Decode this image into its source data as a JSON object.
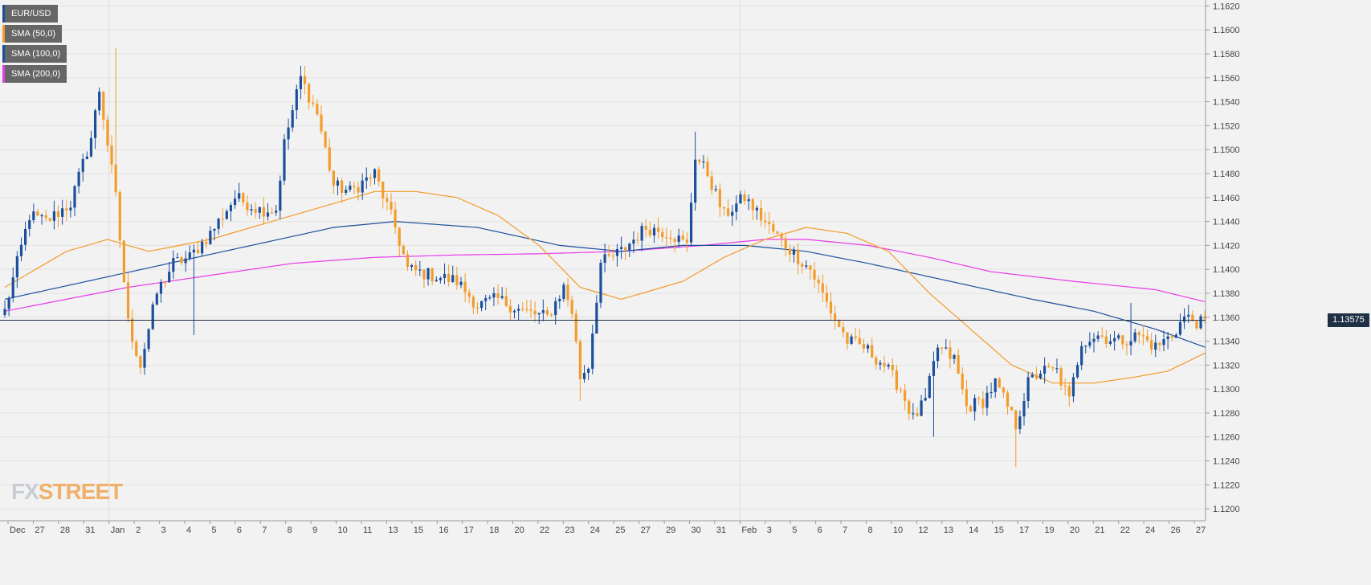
{
  "legend": [
    {
      "label": "EUR/USD",
      "color": "#1b4f9c"
    },
    {
      "label": "SMA (50,0)",
      "color": "#f39c2b"
    },
    {
      "label": "SMA (100,0)",
      "color": "#1b4f9c"
    },
    {
      "label": "SMA (200,0)",
      "color": "#e83be8"
    }
  ],
  "watermark": {
    "fx": "FX",
    "street": "STREET"
  },
  "current_price_label": "1.13575",
  "chart_data": {
    "type": "candlestick",
    "title": "",
    "xlabel": "",
    "ylabel": "",
    "ylim": [
      1.119,
      1.1625
    ],
    "y_ticks": [
      "1.1200",
      "1.1220",
      "1.1240",
      "1.1260",
      "1.1280",
      "1.1300",
      "1.1320",
      "1.1340",
      "1.1360",
      "1.1380",
      "1.1400",
      "1.1420",
      "1.1440",
      "1.1460",
      "1.1480",
      "1.1500",
      "1.1520",
      "1.1540",
      "1.1560",
      "1.1580",
      "1.1600",
      "1.1620"
    ],
    "x_ticks": [
      "Dec",
      "27",
      "28",
      "31",
      "Jan",
      "2",
      "3",
      "4",
      "5",
      "6",
      "7",
      "8",
      "9",
      "10",
      "11",
      "13",
      "15",
      "16",
      "17",
      "18",
      "20",
      "22",
      "23",
      "24",
      "25",
      "27",
      "29",
      "30",
      "31",
      "Feb",
      "3",
      "5",
      "6",
      "7",
      "8",
      "10",
      "12",
      "13",
      "14",
      "15",
      "17",
      "19",
      "20",
      "21",
      "22",
      "24",
      "26",
      "27"
    ],
    "current_price": 1.13575,
    "colors": {
      "up": "#1b4f9c",
      "down": "#f39c2b",
      "sma50": "#f39c2b",
      "sma100": "#1b4f9c",
      "sma200": "#e83be8",
      "grid": "#e2e2e2",
      "price_line": "#1f2f45"
    },
    "anchors": [
      [
        0,
        1.1365
      ],
      [
        6,
        1.1445
      ],
      [
        10,
        1.144
      ],
      [
        16,
        1.1455
      ],
      [
        21,
        1.151
      ],
      [
        23,
        1.155
      ],
      [
        27,
        1.146
      ],
      [
        30,
        1.1355
      ],
      [
        33,
        1.132
      ],
      [
        37,
        1.138
      ],
      [
        41,
        1.1405
      ],
      [
        45,
        1.141
      ],
      [
        50,
        1.143
      ],
      [
        56,
        1.146
      ],
      [
        62,
        1.145
      ],
      [
        66,
        1.145
      ],
      [
        68,
        1.1505
      ],
      [
        72,
        1.156
      ],
      [
        76,
        1.153
      ],
      [
        80,
        1.147
      ],
      [
        84,
        1.1465
      ],
      [
        90,
        1.148
      ],
      [
        95,
        1.1435
      ],
      [
        98,
        1.14
      ],
      [
        104,
        1.1395
      ],
      [
        110,
        1.139
      ],
      [
        115,
        1.137
      ],
      [
        120,
        1.1375
      ],
      [
        126,
        1.1365
      ],
      [
        132,
        1.136
      ],
      [
        136,
        1.1385
      ],
      [
        138,
        1.1365
      ],
      [
        140,
        1.131
      ],
      [
        142,
        1.132
      ],
      [
        145,
        1.1405
      ],
      [
        150,
        1.1415
      ],
      [
        156,
        1.1435
      ],
      [
        162,
        1.143
      ],
      [
        166,
        1.142
      ],
      [
        168,
        1.1495
      ],
      [
        171,
        1.148
      ],
      [
        175,
        1.1445
      ],
      [
        180,
        1.146
      ],
      [
        186,
        1.1435
      ],
      [
        190,
        1.142
      ],
      [
        196,
        1.14
      ],
      [
        201,
        1.1365
      ],
      [
        205,
        1.134
      ],
      [
        209,
        1.1335
      ],
      [
        214,
        1.132
      ],
      [
        218,
        1.13
      ],
      [
        221,
        1.1275
      ],
      [
        224,
        1.129
      ],
      [
        227,
        1.1335
      ],
      [
        231,
        1.1325
      ],
      [
        234,
        1.1285
      ],
      [
        238,
        1.129
      ],
      [
        241,
        1.1305
      ],
      [
        244,
        1.1285
      ],
      [
        246,
        1.127
      ],
      [
        249,
        1.1305
      ],
      [
        252,
        1.1315
      ],
      [
        256,
        1.1315
      ],
      [
        259,
        1.129
      ],
      [
        262,
        1.134
      ],
      [
        266,
        1.1345
      ],
      [
        271,
        1.134
      ],
      [
        276,
        1.1345
      ],
      [
        280,
        1.1335
      ],
      [
        284,
        1.1345
      ],
      [
        287,
        1.136
      ],
      [
        291,
        1.1355
      ]
    ],
    "spikes": [
      {
        "i": 27,
        "high": 1.1585
      },
      {
        "i": 72,
        "high": 1.157
      },
      {
        "i": 168,
        "high": 1.1515
      },
      {
        "i": 140,
        "low": 1.129
      },
      {
        "i": 246,
        "low": 1.1235
      },
      {
        "i": 226,
        "low": 1.126
      },
      {
        "i": 46,
        "low": 1.1345
      },
      {
        "i": 179,
        "low": 1.146
      },
      {
        "i": 274,
        "high": 1.1372
      }
    ],
    "sma50": [
      [
        0,
        1.1385
      ],
      [
        15,
        1.1415
      ],
      [
        25,
        1.1425
      ],
      [
        35,
        1.1415
      ],
      [
        50,
        1.1425
      ],
      [
        65,
        1.144
      ],
      [
        80,
        1.1455
      ],
      [
        90,
        1.1465
      ],
      [
        100,
        1.1465
      ],
      [
        110,
        1.146
      ],
      [
        120,
        1.1445
      ],
      [
        130,
        1.142
      ],
      [
        140,
        1.1385
      ],
      [
        150,
        1.1375
      ],
      [
        165,
        1.139
      ],
      [
        175,
        1.141
      ],
      [
        185,
        1.1425
      ],
      [
        195,
        1.1435
      ],
      [
        205,
        1.143
      ],
      [
        215,
        1.1415
      ],
      [
        225,
        1.138
      ],
      [
        235,
        1.135
      ],
      [
        245,
        1.132
      ],
      [
        255,
        1.1305
      ],
      [
        265,
        1.1305
      ],
      [
        275,
        1.131
      ],
      [
        283,
        1.1315
      ],
      [
        292,
        1.133
      ]
    ],
    "sma100": [
      [
        0,
        1.1375
      ],
      [
        20,
        1.139
      ],
      [
        40,
        1.1405
      ],
      [
        60,
        1.142
      ],
      [
        80,
        1.1435
      ],
      [
        95,
        1.144
      ],
      [
        115,
        1.1435
      ],
      [
        135,
        1.142
      ],
      [
        150,
        1.1415
      ],
      [
        165,
        1.142
      ],
      [
        180,
        1.142
      ],
      [
        195,
        1.1415
      ],
      [
        210,
        1.1405
      ],
      [
        230,
        1.139
      ],
      [
        250,
        1.1375
      ],
      [
        265,
        1.1365
      ],
      [
        280,
        1.135
      ],
      [
        292,
        1.1335
      ]
    ],
    "sma200": [
      [
        0,
        1.1365
      ],
      [
        30,
        1.1385
      ],
      [
        50,
        1.1395
      ],
      [
        70,
        1.1405
      ],
      [
        90,
        1.141
      ],
      [
        110,
        1.1412
      ],
      [
        130,
        1.1413
      ],
      [
        150,
        1.1415
      ],
      [
        170,
        1.142
      ],
      [
        185,
        1.1425
      ],
      [
        195,
        1.1425
      ],
      [
        210,
        1.142
      ],
      [
        225,
        1.141
      ],
      [
        240,
        1.1398
      ],
      [
        260,
        1.139
      ],
      [
        280,
        1.1383
      ],
      [
        292,
        1.1373
      ]
    ]
  }
}
